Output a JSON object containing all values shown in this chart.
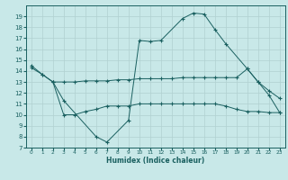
{
  "xlabel": "Humidex (Indice chaleur)",
  "background_color": "#c8e8e8",
  "grid_color": "#b0d0d0",
  "line_color": "#1a6060",
  "xlim": [
    -0.5,
    23.5
  ],
  "ylim": [
    7,
    20
  ],
  "yticks": [
    7,
    8,
    9,
    10,
    11,
    12,
    13,
    14,
    15,
    16,
    17,
    18,
    19
  ],
  "xticks": [
    0,
    1,
    2,
    3,
    4,
    5,
    6,
    7,
    8,
    9,
    10,
    11,
    12,
    13,
    14,
    15,
    16,
    17,
    18,
    19,
    20,
    21,
    22,
    23
  ],
  "curve_main_x": [
    0,
    1,
    2,
    3,
    6,
    7,
    9,
    10,
    11,
    12,
    14,
    15,
    16,
    17,
    18,
    20,
    21,
    22,
    23
  ],
  "curve_main_y": [
    14.5,
    13.7,
    13.0,
    11.3,
    8.0,
    7.5,
    9.5,
    16.8,
    16.7,
    16.8,
    18.8,
    19.3,
    19.2,
    17.8,
    16.5,
    14.2,
    13.0,
    11.8,
    10.2
  ],
  "curve_upper_x": [
    0,
    1,
    2,
    3,
    4,
    5,
    6,
    7,
    8,
    9,
    10,
    11,
    12,
    13,
    14,
    15,
    16,
    17,
    18,
    19,
    20,
    21,
    22,
    23
  ],
  "curve_upper_y": [
    14.3,
    13.7,
    13.0,
    13.0,
    13.0,
    13.1,
    13.1,
    13.1,
    13.2,
    13.2,
    13.3,
    13.3,
    13.3,
    13.3,
    13.4,
    13.4,
    13.4,
    13.4,
    13.4,
    13.4,
    14.2,
    13.0,
    12.2,
    11.5
  ],
  "curve_lower_x": [
    2,
    3,
    4,
    5,
    6,
    7,
    8,
    9,
    10,
    11,
    12,
    13,
    14,
    15,
    16,
    17,
    18,
    19,
    20,
    21,
    22,
    23
  ],
  "curve_lower_y": [
    13.0,
    10.0,
    10.0,
    10.3,
    10.5,
    10.8,
    10.8,
    10.8,
    11.0,
    11.0,
    11.0,
    11.0,
    11.0,
    11.0,
    11.0,
    11.0,
    10.8,
    10.5,
    10.3,
    10.3,
    10.2,
    10.2
  ]
}
